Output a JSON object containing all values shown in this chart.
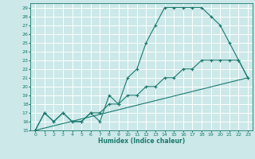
{
  "xlabel": "Humidex (Indice chaleur)",
  "bg_color": "#cce8e8",
  "grid_color": "#ffffff",
  "line_color": "#1a7a6e",
  "xlim": [
    -0.5,
    23.5
  ],
  "ylim": [
    15,
    29.5
  ],
  "xticks": [
    0,
    1,
    2,
    3,
    4,
    5,
    6,
    7,
    8,
    9,
    10,
    11,
    12,
    13,
    14,
    15,
    16,
    17,
    18,
    19,
    20,
    21,
    22,
    23
  ],
  "yticks": [
    15,
    16,
    17,
    18,
    19,
    20,
    21,
    22,
    23,
    24,
    25,
    26,
    27,
    28,
    29
  ],
  "line1_x": [
    0,
    1,
    2,
    3,
    4,
    5,
    6,
    7,
    8,
    9,
    10,
    11,
    12,
    13,
    14,
    15,
    16,
    17,
    18,
    19,
    20,
    21,
    22,
    23
  ],
  "line1_y": [
    15,
    17,
    16,
    17,
    16,
    16,
    17,
    16,
    19,
    18,
    21,
    22,
    25,
    27,
    29,
    29,
    29,
    29,
    29,
    28,
    27,
    25,
    23,
    21
  ],
  "line2_x": [
    0,
    1,
    2,
    3,
    4,
    5,
    6,
    7,
    8,
    9,
    10,
    11,
    12,
    13,
    14,
    15,
    16,
    17,
    18,
    19,
    20,
    21,
    22,
    23
  ],
  "line2_y": [
    15,
    17,
    16,
    17,
    16,
    16,
    17,
    17,
    18,
    18,
    19,
    19,
    20,
    20,
    21,
    21,
    22,
    22,
    23,
    23,
    23,
    23,
    23,
    21
  ],
  "line3_x": [
    0,
    23
  ],
  "line3_y": [
    15,
    21
  ]
}
